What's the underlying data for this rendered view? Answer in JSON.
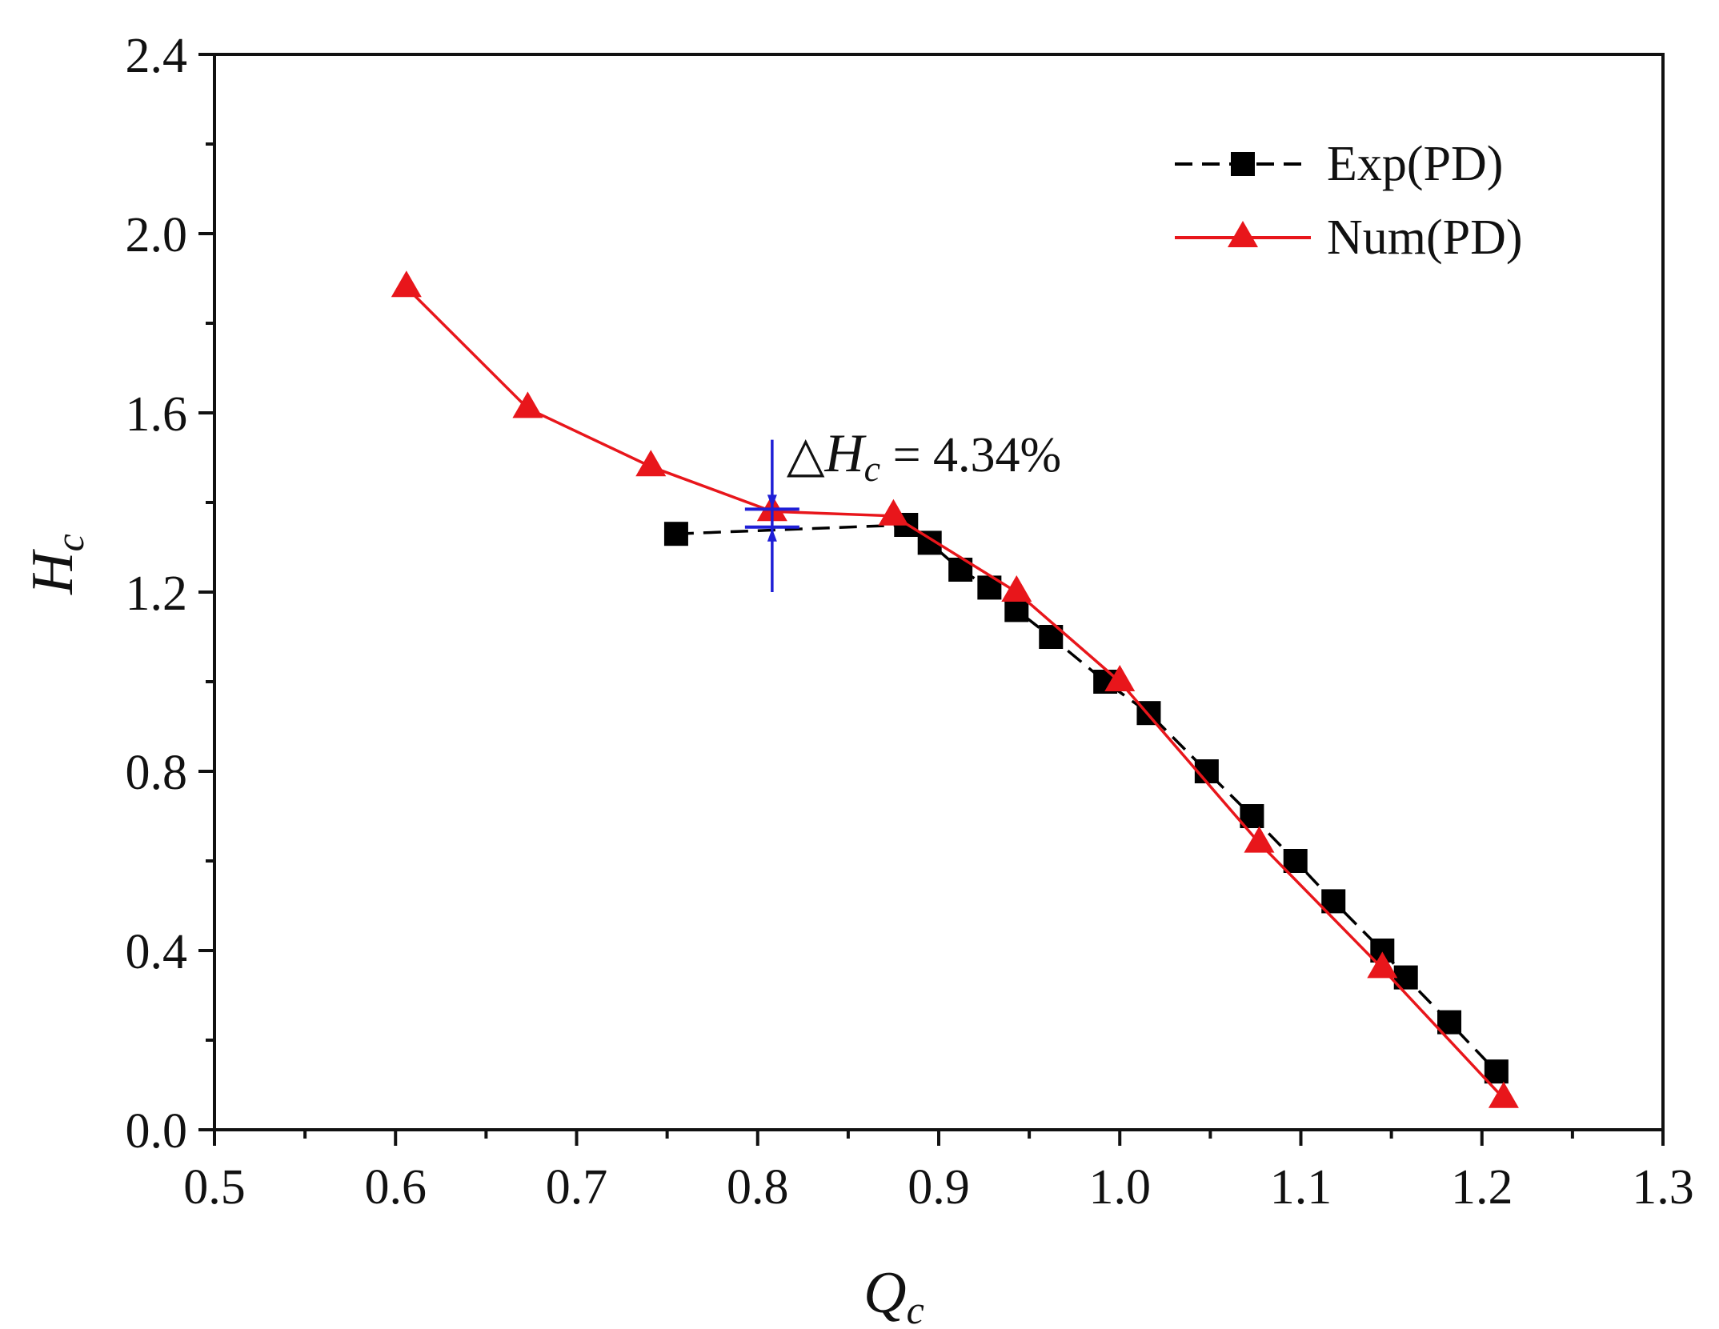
{
  "chart_data": {
    "type": "line",
    "title": "",
    "xlabel_main": "Q",
    "xlabel_sub": "c",
    "ylabel_main": "H",
    "ylabel_sub": "c",
    "xlim": [
      0.5,
      1.3
    ],
    "ylim": [
      0.0,
      2.4
    ],
    "xticks": [
      0.5,
      0.6,
      0.7,
      0.8,
      0.9,
      1.0,
      1.1,
      1.2,
      1.3
    ],
    "xtick_labels": [
      "0.5",
      "0.6",
      "0.7",
      "0.8",
      "0.9",
      "1.0",
      "1.1",
      "1.2",
      "1.3"
    ],
    "yticks": [
      0.0,
      0.4,
      0.8,
      1.2,
      1.6,
      2.0,
      2.4
    ],
    "ytick_labels": [
      "0.0",
      "0.4",
      "0.8",
      "1.2",
      "1.6",
      "2.0",
      "2.4"
    ],
    "grid": false,
    "legend_position": "top-right",
    "series": [
      {
        "name": "Exp(PD)",
        "color": "#000000",
        "line_style": "dashed",
        "marker": "square",
        "x": [
          0.755,
          0.882,
          0.895,
          0.912,
          0.928,
          0.943,
          0.962,
          0.992,
          1.016,
          1.048,
          1.073,
          1.097,
          1.118,
          1.145,
          1.158,
          1.182,
          1.208
        ],
        "y": [
          1.33,
          1.35,
          1.31,
          1.25,
          1.21,
          1.16,
          1.1,
          1.0,
          0.93,
          0.8,
          0.7,
          0.6,
          0.51,
          0.4,
          0.34,
          0.24,
          0.13
        ]
      },
      {
        "name": "Num(PD)",
        "color": "#e8161b",
        "line_style": "solid",
        "marker": "triangle",
        "x": [
          0.606,
          0.673,
          0.741,
          0.808,
          0.875,
          0.943,
          1.0,
          1.077,
          1.145,
          1.212
        ],
        "y": [
          1.88,
          1.61,
          1.48,
          1.38,
          1.37,
          1.2,
          1.0,
          0.64,
          0.36,
          0.07
        ]
      }
    ],
    "annotations": [
      {
        "type": "error_marker",
        "color": "#1f1fd6",
        "x": 0.808,
        "y_upper": 1.385,
        "y_lower": 1.345,
        "y_extent": [
          1.2,
          1.54
        ],
        "prefix": "△",
        "symbol": "H",
        "subscript": "c",
        "suffix": " = 4.34%"
      }
    ]
  }
}
